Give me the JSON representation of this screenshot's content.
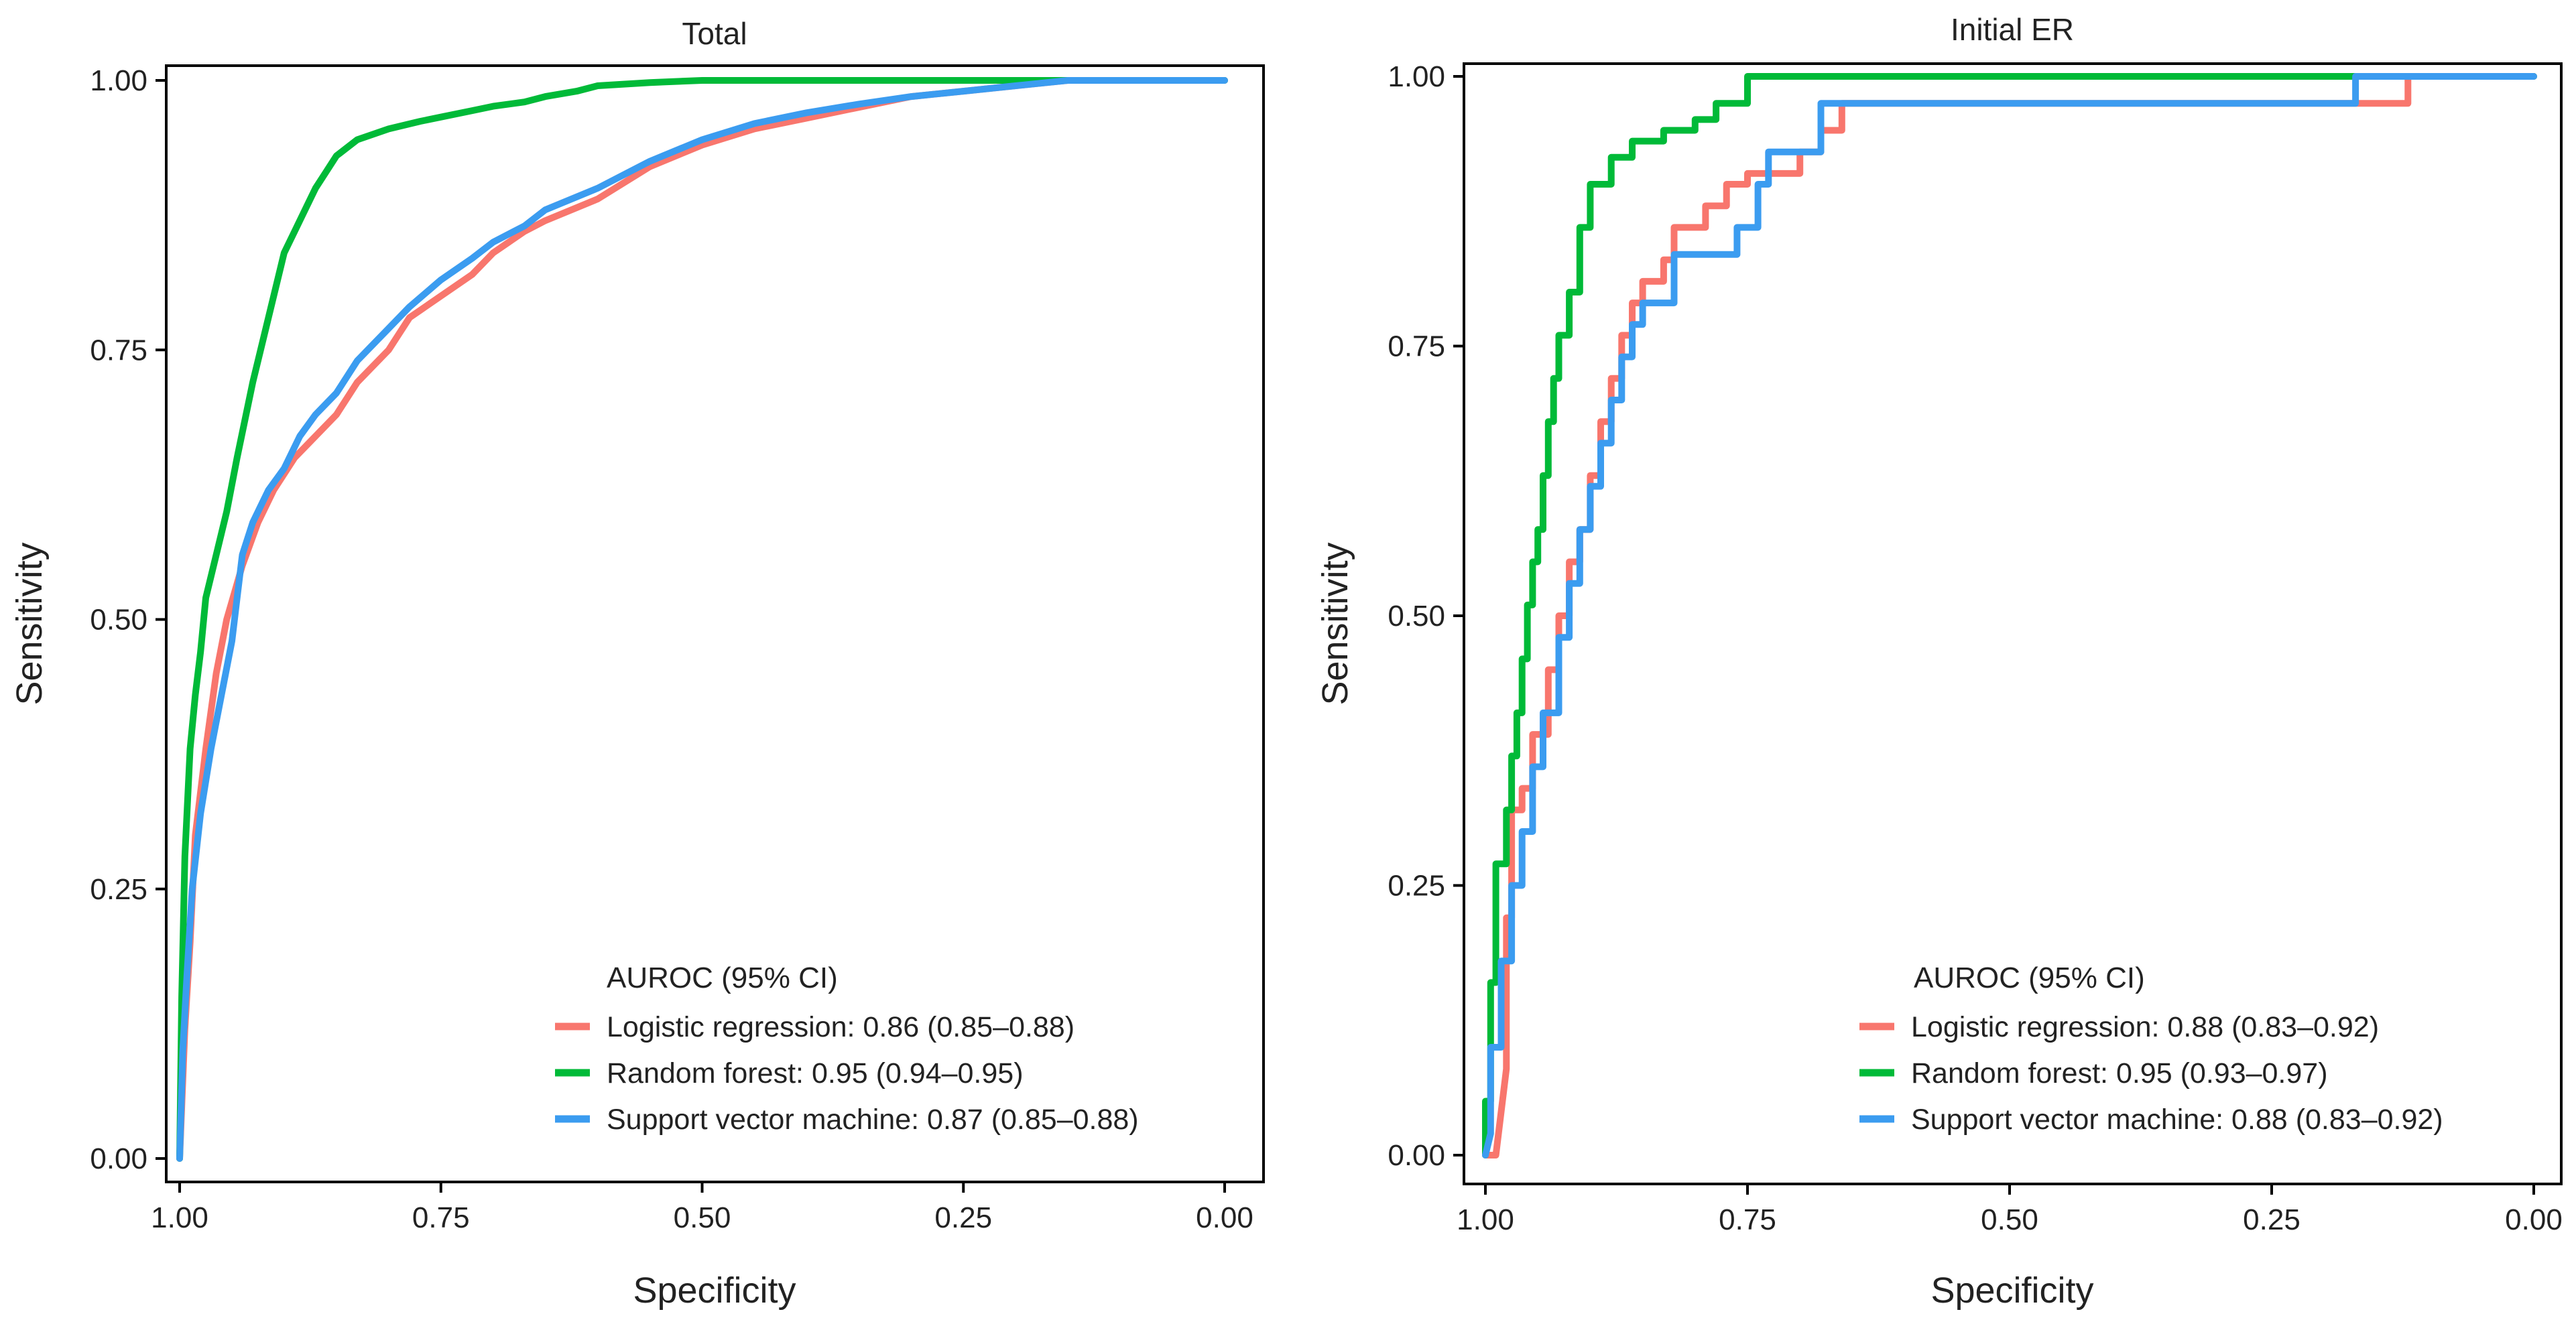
{
  "chart_data": [
    {
      "type": "line",
      "title": "Total",
      "xlabel": "Specificity",
      "ylabel": "Sensitivity",
      "xlim": [
        1.0,
        0.0
      ],
      "ylim": [
        0.0,
        1.0
      ],
      "x_ticks": [
        "1.00",
        "0.75",
        "0.50",
        "0.25",
        "0.00"
      ],
      "x_tick_values": [
        1.0,
        0.75,
        0.5,
        0.25,
        0.0
      ],
      "y_ticks": [
        "0.00",
        "0.25",
        "0.50",
        "0.75",
        "1.00"
      ],
      "y_tick_values": [
        0.0,
        0.25,
        0.5,
        0.75,
        1.0
      ],
      "legend_title": "AUROC (95% CI)",
      "legend_position": "bottom-right",
      "series": [
        {
          "name": "Logistic regression",
          "auroc": "0.86",
          "ci": "(0.85–0.88)",
          "color": "#F8766D",
          "x": [
            1.0,
            0.995,
            0.99,
            0.985,
            0.975,
            0.965,
            0.955,
            0.94,
            0.925,
            0.91,
            0.89,
            0.87,
            0.85,
            0.83,
            0.8,
            0.78,
            0.75,
            0.72,
            0.7,
            0.67,
            0.65,
            0.6,
            0.55,
            0.5,
            0.45,
            0.4,
            0.35,
            0.3,
            0.25,
            0.2,
            0.15,
            0.1,
            0.05,
            0.0
          ],
          "y": [
            0.0,
            0.12,
            0.2,
            0.3,
            0.38,
            0.45,
            0.5,
            0.55,
            0.59,
            0.62,
            0.65,
            0.67,
            0.69,
            0.72,
            0.75,
            0.78,
            0.8,
            0.82,
            0.84,
            0.86,
            0.87,
            0.89,
            0.92,
            0.94,
            0.955,
            0.965,
            0.975,
            0.985,
            0.99,
            0.995,
            1.0,
            1.0,
            1.0,
            1.0
          ]
        },
        {
          "name": "Random forest",
          "auroc": "0.95",
          "ci": "(0.94–0.95)",
          "color": "#00BA38",
          "x": [
            1.0,
            0.998,
            0.995,
            0.99,
            0.985,
            0.98,
            0.975,
            0.965,
            0.955,
            0.945,
            0.93,
            0.92,
            0.91,
            0.9,
            0.89,
            0.88,
            0.87,
            0.86,
            0.85,
            0.83,
            0.8,
            0.77,
            0.75,
            0.72,
            0.7,
            0.67,
            0.65,
            0.62,
            0.6,
            0.55,
            0.5,
            0.4,
            0.3,
            0.2,
            0.1,
            0.0
          ],
          "y": [
            0.0,
            0.15,
            0.28,
            0.38,
            0.43,
            0.47,
            0.52,
            0.56,
            0.6,
            0.65,
            0.72,
            0.76,
            0.8,
            0.84,
            0.86,
            0.88,
            0.9,
            0.915,
            0.93,
            0.945,
            0.955,
            0.962,
            0.966,
            0.972,
            0.976,
            0.98,
            0.985,
            0.99,
            0.995,
            0.998,
            1.0,
            1.0,
            1.0,
            1.0,
            1.0,
            1.0
          ]
        },
        {
          "name": "Support vector machine",
          "auroc": "0.87",
          "ci": "(0.85–0.88)",
          "color": "#3B9CF0",
          "x": [
            1.0,
            0.997,
            0.993,
            0.988,
            0.98,
            0.97,
            0.96,
            0.95,
            0.945,
            0.94,
            0.93,
            0.915,
            0.9,
            0.885,
            0.87,
            0.85,
            0.83,
            0.8,
            0.78,
            0.75,
            0.72,
            0.7,
            0.67,
            0.65,
            0.6,
            0.55,
            0.5,
            0.45,
            0.4,
            0.35,
            0.3,
            0.25,
            0.2,
            0.15,
            0.1,
            0.05,
            0.0
          ],
          "y": [
            0.0,
            0.1,
            0.17,
            0.25,
            0.32,
            0.38,
            0.43,
            0.48,
            0.52,
            0.56,
            0.59,
            0.62,
            0.64,
            0.67,
            0.69,
            0.71,
            0.74,
            0.77,
            0.79,
            0.815,
            0.835,
            0.85,
            0.865,
            0.88,
            0.9,
            0.925,
            0.945,
            0.96,
            0.97,
            0.978,
            0.985,
            0.99,
            0.995,
            1.0,
            1.0,
            1.0,
            1.0
          ]
        }
      ]
    },
    {
      "type": "line",
      "title": "Initial ER",
      "xlabel": "Specificity",
      "ylabel": "Sensitivity",
      "xlim": [
        1.0,
        0.0
      ],
      "ylim": [
        0.0,
        1.0
      ],
      "x_ticks": [
        "1.00",
        "0.75",
        "0.50",
        "0.25",
        "0.00"
      ],
      "x_tick_values": [
        1.0,
        0.75,
        0.5,
        0.25,
        0.0
      ],
      "y_ticks": [
        "0.00",
        "0.25",
        "0.50",
        "0.75",
        "1.00"
      ],
      "y_tick_values": [
        0.0,
        0.25,
        0.5,
        0.75,
        1.0
      ],
      "legend_title": "AUROC (95% CI)",
      "legend_position": "bottom-right",
      "series": [
        {
          "name": "Logistic regression",
          "auroc": "0.88",
          "ci": "(0.83–0.92)",
          "color": "#F8766D",
          "x": [
            1.0,
            0.99,
            0.98,
            0.98,
            0.975,
            0.975,
            0.965,
            0.965,
            0.955,
            0.955,
            0.94,
            0.94,
            0.93,
            0.93,
            0.92,
            0.92,
            0.91,
            0.91,
            0.9,
            0.9,
            0.89,
            0.89,
            0.88,
            0.88,
            0.87,
            0.87,
            0.86,
            0.86,
            0.85,
            0.85,
            0.83,
            0.83,
            0.82,
            0.82,
            0.79,
            0.79,
            0.77,
            0.77,
            0.75,
            0.75,
            0.7,
            0.7,
            0.68,
            0.68,
            0.66,
            0.66,
            0.16,
            0.16,
            0.12,
            0.12,
            0.0
          ],
          "y": [
            0.0,
            0.0,
            0.08,
            0.22,
            0.22,
            0.32,
            0.32,
            0.34,
            0.34,
            0.39,
            0.39,
            0.45,
            0.45,
            0.5,
            0.5,
            0.55,
            0.55,
            0.58,
            0.58,
            0.63,
            0.63,
            0.68,
            0.68,
            0.72,
            0.72,
            0.76,
            0.76,
            0.79,
            0.79,
            0.81,
            0.81,
            0.83,
            0.83,
            0.86,
            0.86,
            0.88,
            0.88,
            0.9,
            0.9,
            0.91,
            0.91,
            0.93,
            0.93,
            0.95,
            0.95,
            0.975,
            0.975,
            0.975,
            0.975,
            1.0,
            1.0
          ]
        },
        {
          "name": "Random forest",
          "auroc": "0.95",
          "ci": "(0.93–0.97)",
          "color": "#00BA38",
          "x": [
            1.0,
            1.0,
            0.995,
            0.995,
            0.99,
            0.99,
            0.98,
            0.98,
            0.975,
            0.975,
            0.97,
            0.97,
            0.965,
            0.965,
            0.96,
            0.96,
            0.955,
            0.955,
            0.95,
            0.95,
            0.945,
            0.945,
            0.94,
            0.94,
            0.935,
            0.935,
            0.93,
            0.93,
            0.92,
            0.92,
            0.91,
            0.91,
            0.9,
            0.9,
            0.88,
            0.88,
            0.86,
            0.86,
            0.83,
            0.83,
            0.8,
            0.8,
            0.78,
            0.78,
            0.75,
            0.75,
            0.0
          ],
          "y": [
            0.0,
            0.05,
            0.05,
            0.16,
            0.16,
            0.27,
            0.27,
            0.32,
            0.32,
            0.37,
            0.37,
            0.41,
            0.41,
            0.46,
            0.46,
            0.51,
            0.51,
            0.55,
            0.55,
            0.58,
            0.58,
            0.63,
            0.63,
            0.68,
            0.68,
            0.72,
            0.72,
            0.76,
            0.76,
            0.8,
            0.8,
            0.86,
            0.86,
            0.9,
            0.9,
            0.925,
            0.925,
            0.94,
            0.94,
            0.95,
            0.95,
            0.96,
            0.96,
            0.975,
            0.975,
            1.0,
            1.0
          ]
        },
        {
          "name": "Support vector machine",
          "auroc": "0.88",
          "ci": "(0.83–0.92)",
          "color": "#3B9CF0",
          "x": [
            1.0,
            0.995,
            0.995,
            0.985,
            0.985,
            0.975,
            0.975,
            0.965,
            0.965,
            0.955,
            0.955,
            0.945,
            0.945,
            0.93,
            0.93,
            0.92,
            0.92,
            0.91,
            0.91,
            0.9,
            0.9,
            0.89,
            0.89,
            0.88,
            0.88,
            0.87,
            0.87,
            0.86,
            0.86,
            0.85,
            0.85,
            0.82,
            0.82,
            0.76,
            0.76,
            0.74,
            0.74,
            0.73,
            0.73,
            0.68,
            0.68,
            0.17,
            0.17,
            0.0
          ],
          "y": [
            0.0,
            0.02,
            0.1,
            0.1,
            0.18,
            0.18,
            0.25,
            0.25,
            0.3,
            0.3,
            0.36,
            0.36,
            0.41,
            0.41,
            0.48,
            0.48,
            0.53,
            0.53,
            0.58,
            0.58,
            0.62,
            0.62,
            0.66,
            0.66,
            0.7,
            0.7,
            0.74,
            0.74,
            0.77,
            0.77,
            0.79,
            0.79,
            0.835,
            0.835,
            0.86,
            0.86,
            0.9,
            0.9,
            0.93,
            0.93,
            0.975,
            0.975,
            1.0,
            1.0
          ]
        }
      ]
    }
  ]
}
